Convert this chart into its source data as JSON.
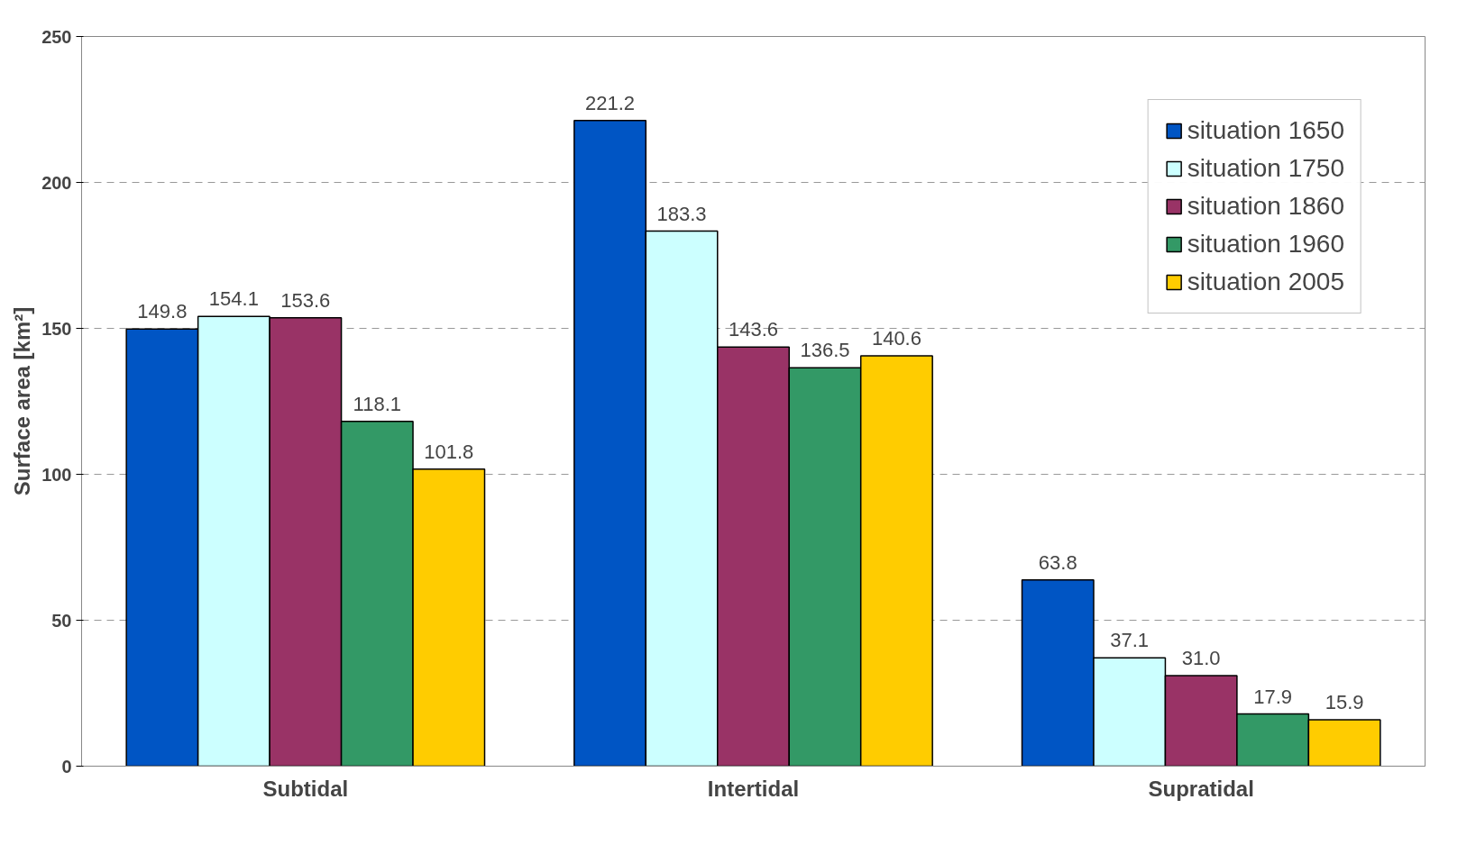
{
  "chart_data": {
    "type": "bar",
    "ylabel": "Surface area [km²]",
    "categories": [
      "Subtidal",
      "Intertidal",
      "Supratidal"
    ],
    "series": [
      {
        "name": "situation 1650",
        "color": "#0055c4",
        "values": [
          149.8,
          221.2,
          63.8
        ],
        "value_labels": [
          "149.8",
          "221.2",
          "63.8"
        ]
      },
      {
        "name": "situation 1750",
        "color": "#ccffff",
        "values": [
          154.1,
          183.3,
          37.1
        ],
        "value_labels": [
          "154.1",
          "183.3",
          "37.1"
        ]
      },
      {
        "name": "situation 1860",
        "color": "#993366",
        "values": [
          153.6,
          143.6,
          31.0
        ],
        "value_labels": [
          "153.6",
          "143.6",
          "31.0"
        ]
      },
      {
        "name": "situation 1960",
        "color": "#339966",
        "values": [
          118.1,
          136.5,
          17.9
        ],
        "value_labels": [
          "118.1",
          "136.5",
          "17.9"
        ]
      },
      {
        "name": "situation 2005",
        "color": "#ffcc00",
        "values": [
          101.8,
          140.6,
          15.9
        ],
        "value_labels": [
          "101.8",
          "140.6",
          "15.9"
        ]
      }
    ],
    "ylim": [
      0,
      250
    ],
    "yticks": [
      0,
      50,
      100,
      150,
      200,
      250
    ],
    "grid": "y",
    "legend": "top right"
  }
}
